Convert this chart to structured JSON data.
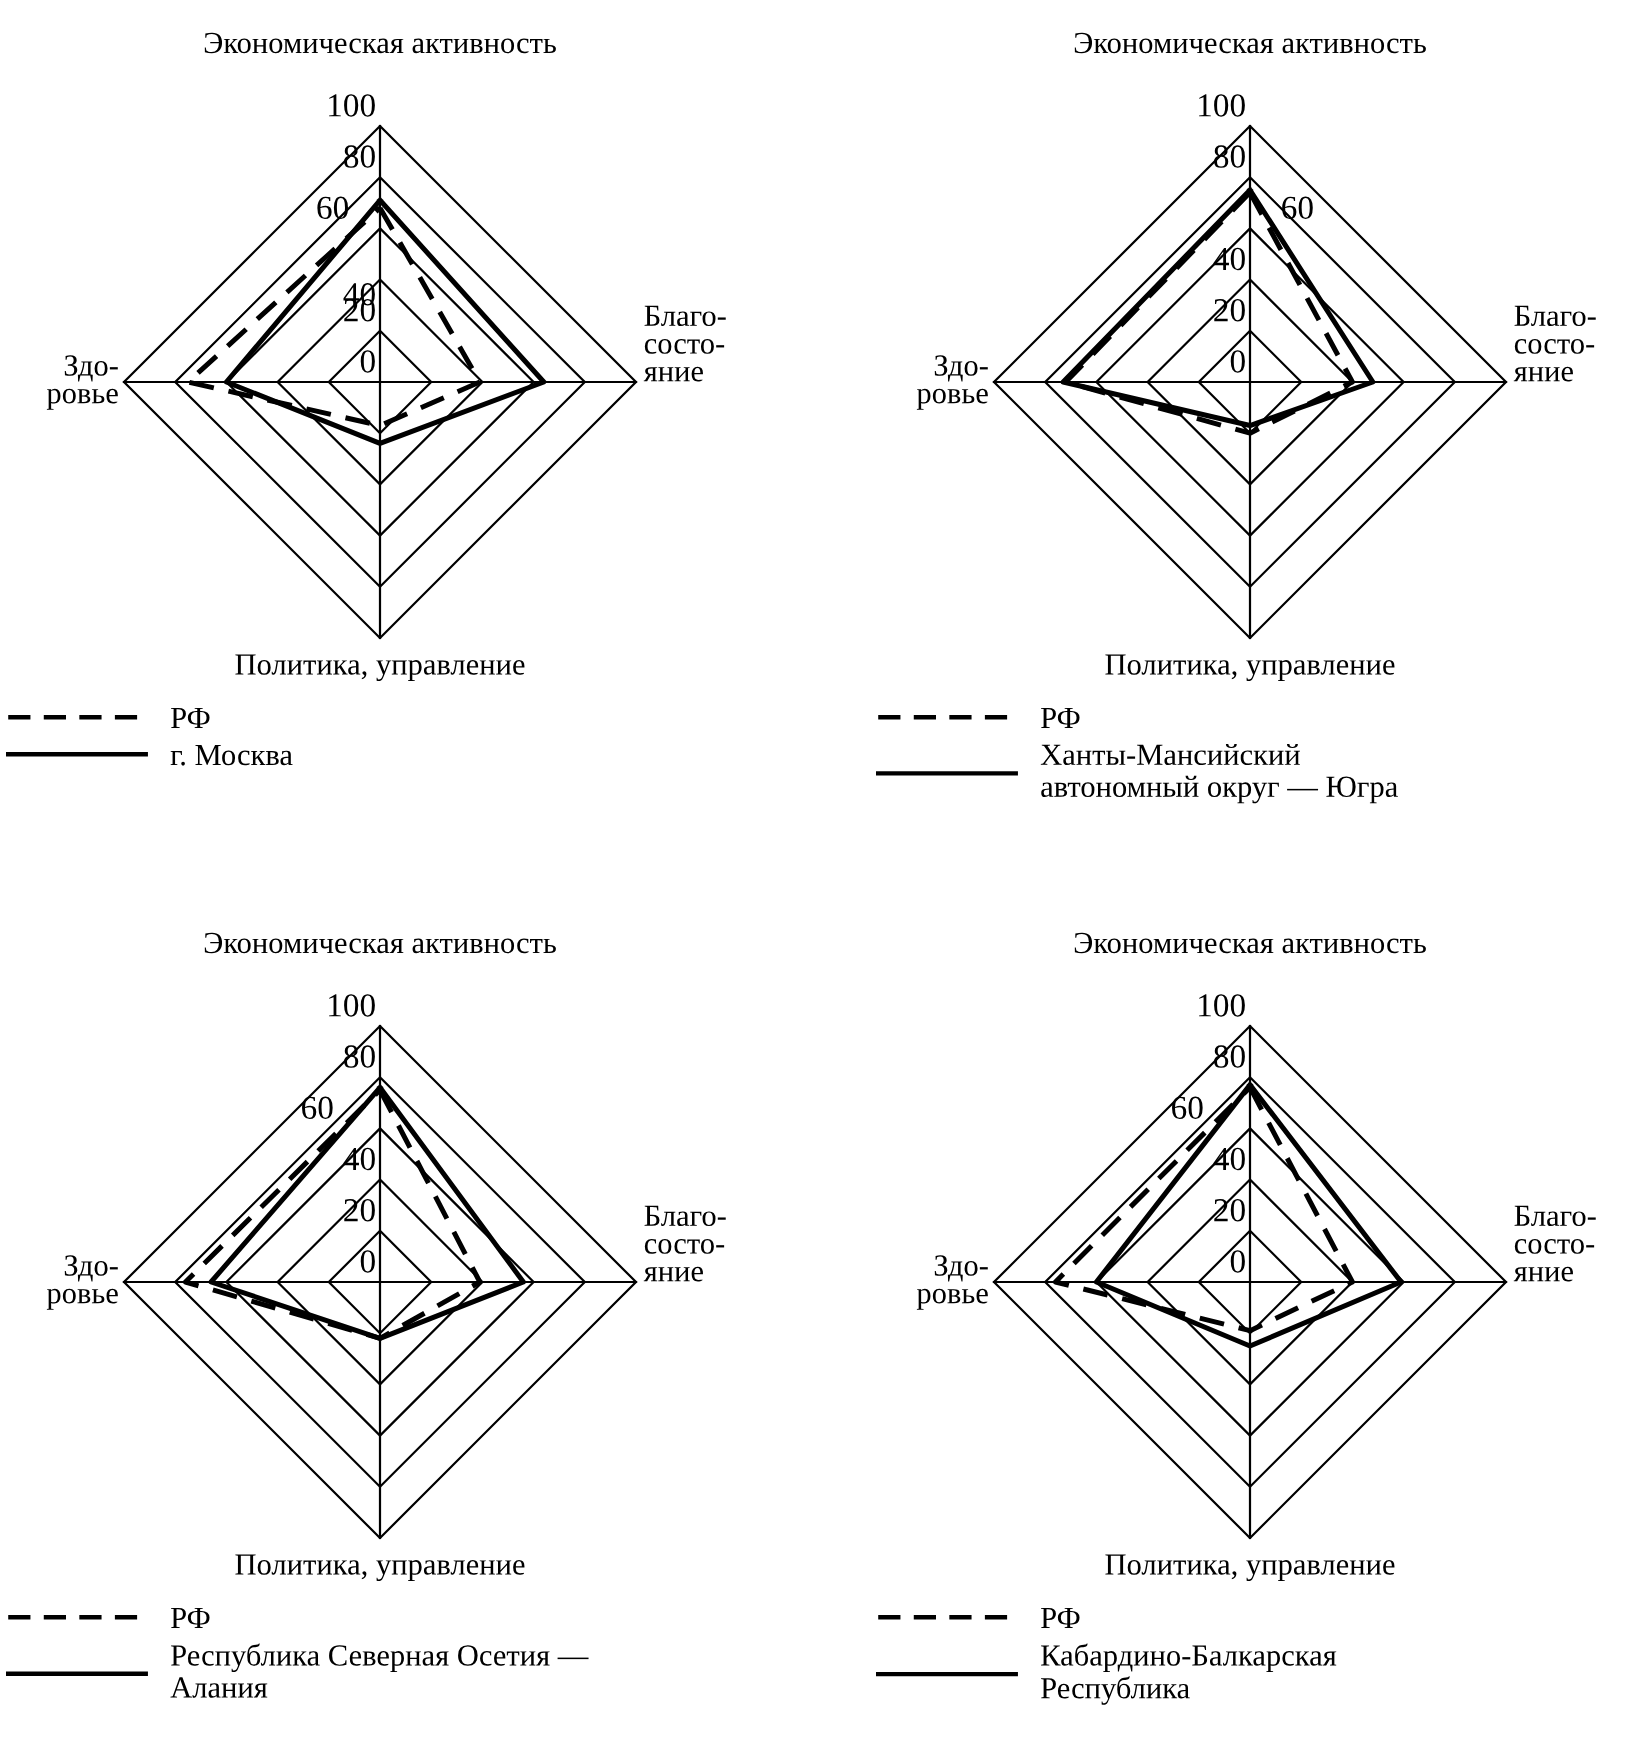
{
  "chart_data": [
    {
      "type": "radar",
      "categories": [
        "Экономическая активность",
        "Благо-\nсосто-\nяние",
        "Политика, управление",
        "Здо-\nровье"
      ],
      "ylim": [
        0,
        100
      ],
      "yticks": [
        0,
        20,
        40,
        60,
        80,
        100
      ],
      "grid": true,
      "legend": "bottom",
      "series": [
        {
          "name": "РФ",
          "color": "#000000",
          "line_style": "dashed",
          "values": [
            68,
            39,
            17,
            75
          ]
        },
        {
          "name": "г. Москва",
          "color": "#000000",
          "line_style": "solid",
          "values": [
            71,
            64,
            24,
            60
          ]
        }
      ]
    },
    {
      "type": "radar",
      "categories": [
        "Экономическая активность",
        "Благо-\nсосто-\nяние",
        "Политика, управление",
        "Здо-\nровье"
      ],
      "ylim": [
        0,
        100
      ],
      "yticks": [
        0,
        20,
        40,
        60,
        80,
        100
      ],
      "grid": true,
      "legend": "bottom",
      "series": [
        {
          "name": "РФ",
          "color": "#000000",
          "line_style": "dashed",
          "values": [
            74,
            40,
            20,
            72
          ]
        },
        {
          "name": "Ханты-Мансийский\nавтономный округ — Югра",
          "color": "#000000",
          "line_style": "solid",
          "values": [
            75,
            48,
            17,
            73
          ]
        }
      ]
    },
    {
      "type": "radar",
      "categories": [
        "Экономическая активность",
        "Благо-\nсосто-\nяние",
        "Политика, управление",
        "Здо-\nровье"
      ],
      "ylim": [
        0,
        100
      ],
      "yticks": [
        0,
        20,
        40,
        60,
        80,
        100
      ],
      "grid": true,
      "legend": "bottom",
      "series": [
        {
          "name": "РФ",
          "color": "#000000",
          "line_style": "dashed",
          "values": [
            75,
            39,
            22,
            76
          ]
        },
        {
          "name": "Республика Северная Осетия —\nАлания",
          "color": "#000000",
          "line_style": "solid",
          "values": [
            76,
            56,
            22,
            66
          ]
        }
      ]
    },
    {
      "type": "radar",
      "categories": [
        "Экономическая активность",
        "Благо-\nсосто-\nяние",
        "Политика, управление",
        "Здо-\nровье"
      ],
      "ylim": [
        0,
        100
      ],
      "yticks": [
        0,
        20,
        40,
        60,
        80,
        100
      ],
      "grid": true,
      "legend": "bottom",
      "series": [
        {
          "name": "РФ",
          "color": "#000000",
          "line_style": "dashed",
          "values": [
            76,
            40,
            19,
            76
          ]
        },
        {
          "name": "Кабардино-Балкарская\nРеспублика",
          "color": "#000000",
          "line_style": "solid",
          "values": [
            77,
            59,
            25,
            60
          ]
        }
      ]
    }
  ]
}
